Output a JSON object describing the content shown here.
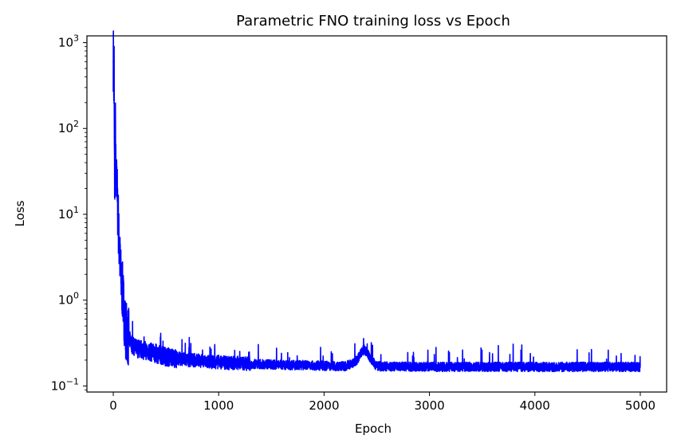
{
  "chart_data": {
    "type": "line",
    "title": "Parametric FNO training loss vs Epoch",
    "xlabel": "Epoch",
    "ylabel": "Loss",
    "xlim": [
      -250,
      5250
    ],
    "ylim": [
      0.085,
      1200
    ],
    "yscale": "log",
    "grid": false,
    "x_ticks": [
      0,
      1000,
      2000,
      3000,
      4000,
      5000
    ],
    "x_tick_labels": [
      "0",
      "1000",
      "2000",
      "3000",
      "4000",
      "5000"
    ],
    "y_ticks": [
      0.1,
      1,
      10,
      100,
      1000
    ],
    "y_tick_labels": [
      {
        "base": "10",
        "exp": "−1"
      },
      {
        "base": "10",
        "exp": "0"
      },
      {
        "base": "10",
        "exp": "1"
      },
      {
        "base": "10",
        "exp": "2"
      },
      {
        "base": "10",
        "exp": "3"
      }
    ],
    "series": [
      {
        "color": "#0000ff",
        "x": [
          0,
          2,
          5,
          8,
          10,
          12,
          15,
          20,
          25,
          30,
          35,
          40,
          45,
          50,
          60,
          70,
          80,
          90,
          100,
          110,
          120,
          140,
          160,
          180,
          200,
          250,
          300,
          350,
          400,
          450,
          500,
          600,
          700,
          800,
          900,
          1000,
          1100,
          1200,
          1300,
          1400,
          1500,
          1600,
          1700,
          1800,
          1900,
          2000,
          2100,
          2200,
          2300,
          2350,
          2380,
          2400,
          2450,
          2500,
          2600,
          2800,
          3000,
          3200,
          3400,
          3600,
          3800,
          4000,
          4200,
          4400,
          4600,
          4800,
          5000
        ],
        "y": [
          600,
          800,
          200,
          600,
          80,
          30,
          15,
          100,
          25,
          20,
          35,
          10,
          15,
          6,
          3.5,
          2,
          1.5,
          1.2,
          0.8,
          0.55,
          0.45,
          0.38,
          0.33,
          0.3,
          0.28,
          0.27,
          0.26,
          0.25,
          0.24,
          0.23,
          0.22,
          0.21,
          0.2,
          0.2,
          0.19,
          0.19,
          0.185,
          0.185,
          0.18,
          0.18,
          0.178,
          0.176,
          0.175,
          0.175,
          0.173,
          0.172,
          0.171,
          0.17,
          0.19,
          0.24,
          0.27,
          0.25,
          0.2,
          0.17,
          0.168,
          0.168,
          0.167,
          0.167,
          0.167,
          0.167,
          0.167,
          0.167,
          0.167,
          0.167,
          0.167,
          0.167,
          0.167
        ]
      }
    ]
  }
}
